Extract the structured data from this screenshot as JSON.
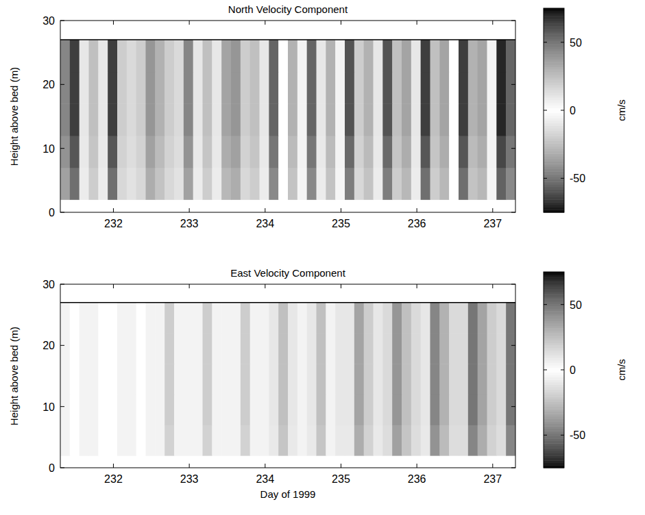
{
  "chart_data": [
    {
      "type": "heatmap",
      "title": "North Velocity Component",
      "y_label": "Height above bed (m)",
      "xlim": [
        231.3,
        237.3
      ],
      "xticks": [
        232,
        233,
        234,
        235,
        236,
        237
      ],
      "ylim": [
        0,
        30
      ],
      "yticks": [
        0,
        10,
        20,
        30
      ],
      "x": [
        231.3,
        231.425,
        231.55,
        231.675,
        231.8,
        231.925,
        232.05,
        232.175,
        232.3,
        232.425,
        232.55,
        232.675,
        232.8,
        232.925,
        233.05,
        233.175,
        233.3,
        233.425,
        233.55,
        233.675,
        233.8,
        233.925,
        234.05,
        234.175,
        234.3,
        234.425,
        234.55,
        234.675,
        234.8,
        234.925,
        235.05,
        235.175,
        235.3,
        235.425,
        235.55,
        235.675,
        235.8,
        235.925,
        236.05,
        236.175,
        236.3,
        236.425,
        236.55,
        236.675,
        236.8,
        236.925,
        237.05,
        237.175,
        237.3
      ],
      "y": [
        2,
        7,
        12,
        17,
        22,
        27
      ],
      "cells": [
        [
          -36,
          -52,
          -8,
          20,
          8,
          -52,
          -16,
          12,
          16,
          -32,
          -24,
          16,
          12,
          -36,
          -8,
          20,
          8,
          -28,
          -32,
          16,
          20,
          -8,
          -44,
          0,
          24,
          4,
          -44,
          -8,
          24,
          4,
          -48,
          -16,
          24,
          8,
          -48,
          -20,
          28,
          8,
          -52,
          -20,
          28,
          0,
          -52,
          -24,
          28,
          4,
          -56,
          -44
        ],
        [
          -41,
          -59,
          -9,
          23,
          9,
          -59,
          -18,
          14,
          18,
          -36,
          -27,
          18,
          14,
          -41,
          -9,
          23,
          9,
          -32,
          -36,
          18,
          23,
          -9,
          -50,
          0,
          27,
          5,
          -50,
          -9,
          27,
          5,
          -54,
          -18,
          27,
          9,
          -54,
          -23,
          32,
          9,
          -59,
          -23,
          32,
          0,
          -59,
          -27,
          32,
          5,
          -63,
          -50
        ],
        [
          -45,
          -65,
          -10,
          25,
          10,
          -65,
          -20,
          15,
          20,
          -40,
          -30,
          20,
          15,
          -45,
          -10,
          25,
          10,
          -35,
          -40,
          20,
          25,
          -10,
          -55,
          0,
          30,
          5,
          -55,
          -10,
          30,
          5,
          -60,
          -20,
          30,
          10,
          -60,
          -25,
          35,
          10,
          -65,
          -25,
          35,
          0,
          -65,
          -30,
          35,
          5,
          -70,
          -55
        ],
        [
          -45,
          -65,
          -10,
          25,
          10,
          -65,
          -20,
          15,
          20,
          -40,
          -30,
          20,
          15,
          -45,
          -10,
          25,
          10,
          -35,
          -40,
          20,
          25,
          -10,
          -55,
          0,
          30,
          5,
          -55,
          -10,
          30,
          5,
          -60,
          -20,
          30,
          10,
          -60,
          -25,
          35,
          10,
          -65,
          -25,
          35,
          0,
          -65,
          -30,
          35,
          5,
          -70,
          -55
        ],
        [
          -45,
          -65,
          -10,
          25,
          10,
          -65,
          -20,
          15,
          20,
          -40,
          -30,
          20,
          15,
          -45,
          -10,
          25,
          10,
          -35,
          -40,
          20,
          25,
          -10,
          -55,
          0,
          30,
          5,
          -55,
          -10,
          30,
          5,
          -60,
          -20,
          30,
          10,
          -60,
          -25,
          35,
          10,
          -65,
          -25,
          35,
          0,
          -65,
          -30,
          35,
          5,
          -70,
          -55
        ]
      ],
      "colorbar": {
        "range": [
          -75,
          75
        ],
        "ticks": [
          -50,
          0,
          50
        ],
        "label": "cm/s"
      }
    },
    {
      "type": "heatmap",
      "title": "East Velocity Component",
      "x_label": "Day of 1999",
      "y_label": "Height above bed (m)",
      "xlim": [
        231.3,
        237.3
      ],
      "xticks": [
        232,
        233,
        234,
        235,
        236,
        237
      ],
      "ylim": [
        0,
        30
      ],
      "yticks": [
        0,
        10,
        20,
        30
      ],
      "x": [
        231.3,
        231.425,
        231.55,
        231.675,
        231.8,
        231.925,
        232.05,
        232.175,
        232.3,
        232.425,
        232.55,
        232.675,
        232.8,
        232.925,
        233.05,
        233.175,
        233.3,
        233.425,
        233.55,
        233.675,
        233.8,
        233.925,
        234.05,
        234.175,
        234.3,
        234.425,
        234.55,
        234.675,
        234.8,
        234.925,
        235.05,
        235.175,
        235.3,
        235.425,
        235.55,
        235.675,
        235.8,
        235.925,
        236.05,
        236.175,
        236.3,
        236.425,
        236.55,
        236.675,
        236.8,
        236.925,
        237.05,
        237.175,
        237.3
      ],
      "y": [
        2,
        7,
        12,
        17,
        22,
        27
      ],
      "cells": [
        [
          5,
          0,
          -5,
          5,
          0,
          0,
          -5,
          5,
          0,
          -5,
          5,
          18,
          5,
          -5,
          5,
          18,
          5,
          -5,
          5,
          18,
          5,
          -5,
          9,
          23,
          9,
          -5,
          9,
          23,
          5,
          -9,
          9,
          32,
          18,
          -9,
          14,
          36,
          23,
          -14,
          9,
          41,
          27,
          -14,
          14,
          45,
          32,
          -18,
          14,
          45
        ],
        [
          5,
          0,
          -5,
          5,
          0,
          0,
          -5,
          5,
          0,
          -5,
          5,
          20,
          5,
          -5,
          5,
          20,
          5,
          -5,
          5,
          20,
          5,
          -5,
          10,
          25,
          10,
          -5,
          10,
          25,
          5,
          -10,
          10,
          35,
          20,
          -10,
          15,
          40,
          25,
          -15,
          10,
          45,
          30,
          -15,
          15,
          50,
          35,
          -20,
          15,
          50
        ],
        [
          5,
          0,
          -5,
          5,
          0,
          0,
          -5,
          5,
          0,
          -5,
          5,
          20,
          5,
          -5,
          5,
          20,
          5,
          -5,
          5,
          20,
          5,
          -5,
          10,
          25,
          10,
          -5,
          10,
          25,
          5,
          -10,
          10,
          35,
          20,
          -10,
          15,
          40,
          25,
          -15,
          10,
          45,
          30,
          -15,
          15,
          50,
          35,
          -20,
          15,
          50
        ],
        [
          5,
          0,
          -5,
          5,
          0,
          0,
          -5,
          5,
          0,
          -5,
          5,
          20,
          5,
          -5,
          5,
          20,
          5,
          -5,
          5,
          20,
          5,
          -5,
          10,
          25,
          10,
          -5,
          10,
          25,
          5,
          -10,
          10,
          35,
          20,
          -10,
          15,
          40,
          25,
          -15,
          10,
          45,
          30,
          -15,
          15,
          50,
          35,
          -20,
          15,
          50
        ],
        [
          5,
          0,
          -5,
          5,
          0,
          0,
          -5,
          5,
          0,
          -5,
          5,
          20,
          5,
          -5,
          5,
          20,
          5,
          -5,
          5,
          20,
          5,
          -5,
          10,
          25,
          10,
          -5,
          10,
          25,
          5,
          -10,
          10,
          35,
          20,
          -10,
          15,
          40,
          25,
          -15,
          10,
          45,
          30,
          -15,
          15,
          50,
          35,
          -20,
          15,
          50
        ]
      ],
      "colorbar": {
        "range": [
          -75,
          75
        ],
        "ticks": [
          -50,
          0,
          50
        ],
        "label": "cm/s"
      }
    }
  ]
}
